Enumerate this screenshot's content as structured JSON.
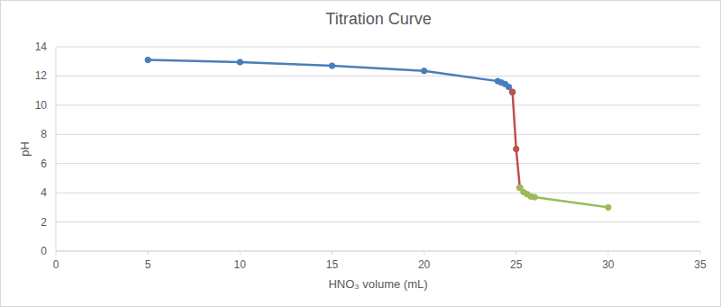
{
  "chart_data": {
    "type": "line",
    "title": "Titration Curve",
    "x_label": "HNO₃ volume (mL)",
    "y_label": "pH",
    "x": [
      5,
      10,
      15,
      20,
      24,
      24.2,
      24.4,
      24.6,
      24.8,
      25,
      25.2,
      25.4,
      25.6,
      25.8,
      26,
      30
    ],
    "series": [
      {
        "color": "#4a7ebb",
        "marker": "circle",
        "line_style": "solid",
        "values": [
          13.1,
          12.95,
          12.7,
          12.35,
          11.65,
          11.55,
          11.45,
          11.25,
          10.9,
          null,
          null,
          null,
          null,
          null,
          null,
          null
        ]
      },
      {
        "color": "#c0504d",
        "marker": "circle",
        "line_style": "solid",
        "values": [
          null,
          null,
          null,
          null,
          null,
          null,
          null,
          null,
          10.9,
          7.0,
          4.35,
          null,
          null,
          null,
          null,
          null
        ]
      },
      {
        "color": "#9bbb59",
        "marker": "circle",
        "line_style": "solid",
        "values": [
          null,
          null,
          null,
          null,
          null,
          null,
          null,
          null,
          null,
          null,
          4.35,
          4.05,
          3.9,
          3.75,
          3.7,
          3.0
        ]
      }
    ],
    "xlim": [
      0,
      35
    ],
    "xticks": [
      0,
      5,
      10,
      15,
      20,
      25,
      30,
      35
    ],
    "ylim": [
      0,
      14
    ],
    "yticks": [
      0,
      2,
      4,
      6,
      8,
      10,
      12,
      14
    ],
    "grid": true
  }
}
